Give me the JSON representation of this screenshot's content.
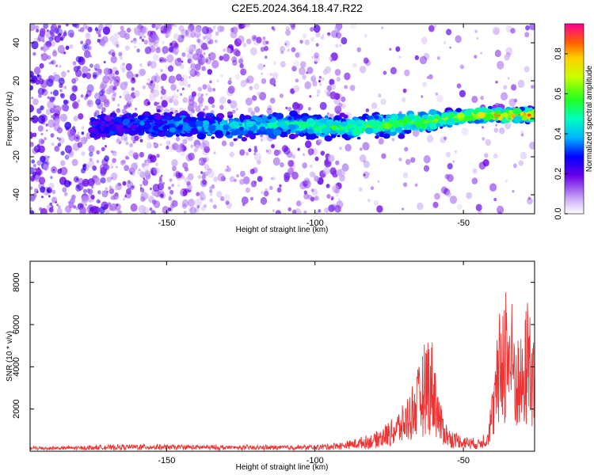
{
  "title": "C2E5.2024.364.18.47.R22",
  "colors": {
    "snr_line": "#ee3333",
    "scatter_low": "#7b1fe0",
    "scatter_faint": "#d9c2f5"
  },
  "chart_data": [
    {
      "type": "heatmap",
      "xlabel": "Height of straight line (km)",
      "ylabel": "Frequency (Hz)",
      "xlim": [
        -196,
        -26
      ],
      "ylim": [
        -50,
        50
      ],
      "xticks": [
        -150,
        -100,
        -50
      ],
      "yticks": [
        -40,
        -20,
        0,
        20,
        40
      ],
      "colorbar": {
        "label": "Normalized spectral amplitude",
        "range": [
          0,
          0.95
        ],
        "ticks": [
          0.0,
          0.2,
          0.4,
          0.6,
          0.8
        ],
        "colormap": "rainbow"
      },
      "ridge": [
        {
          "x": -170,
          "y": -4
        },
        {
          "x": -150,
          "y": -3
        },
        {
          "x": -130,
          "y": -4
        },
        {
          "x": -110,
          "y": -3
        },
        {
          "x": -90,
          "y": -5
        },
        {
          "x": -75,
          "y": -3
        },
        {
          "x": -60,
          "y": -1
        },
        {
          "x": -45,
          "y": 2
        },
        {
          "x": -30,
          "y": 2
        }
      ]
    },
    {
      "type": "line",
      "xlabel": "Height of straight line (km)",
      "ylabel": "SNR (10 * v/v)",
      "xlim": [
        -196,
        -26
      ],
      "ylim": [
        0,
        9000
      ],
      "xticks": [
        -150,
        -100,
        -50
      ],
      "yticks": [
        2000,
        4000,
        6000,
        8000
      ],
      "series": [
        {
          "x": [
            -196,
            -180,
            -160,
            -140,
            -120,
            -100,
            -90,
            -80,
            -75,
            -70,
            -65,
            -62,
            -60,
            -58,
            -55,
            -50,
            -45,
            -42,
            -40,
            -38,
            -36,
            -34,
            -32,
            -30,
            -28,
            -26
          ],
          "y": [
            150,
            180,
            250,
            220,
            200,
            220,
            350,
            700,
            1200,
            1900,
            3500,
            5000,
            4500,
            2000,
            900,
            600,
            450,
            900,
            2800,
            5500,
            7500,
            6500,
            5000,
            4500,
            7200,
            4000
          ]
        }
      ]
    }
  ]
}
